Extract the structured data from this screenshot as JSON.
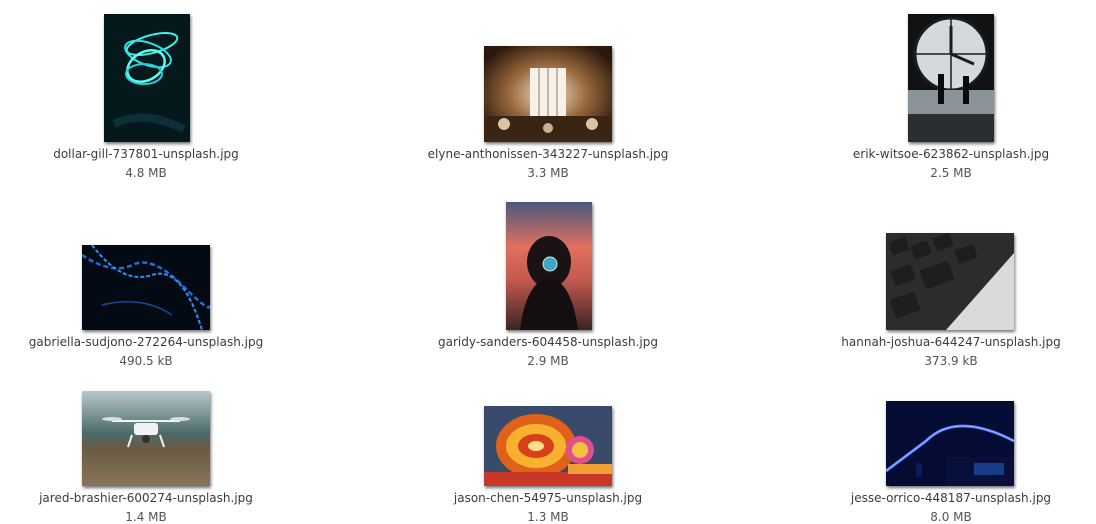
{
  "files": [
    {
      "name": "dollar-gill-737801-unsplash.jpg",
      "size": "4.8 MB",
      "thumbnail": "neon-light-trail-icon"
    },
    {
      "name": "elyne-anthonissen-343227-unsplash.jpg",
      "size": "3.3 MB",
      "thumbnail": "restaurant-interior-icon"
    },
    {
      "name": "erik-witsoe-623862-unsplash.jpg",
      "size": "2.5 MB",
      "thumbnail": "clock-window-icon"
    },
    {
      "name": "gabriella-sudjono-272264-unsplash.jpg",
      "size": "490.5 kB",
      "thumbnail": "blue-light-streaks-icon"
    },
    {
      "name": "garidy-sanders-604458-unsplash.jpg",
      "size": "2.9 MB",
      "thumbnail": "woman-sunset-icon"
    },
    {
      "name": "hannah-joshua-644247-unsplash.jpg",
      "size": "373.9 kB",
      "thumbnail": "keyboard-icon"
    },
    {
      "name": "jared-brashier-600274-unsplash.jpg",
      "size": "1.4 MB",
      "thumbnail": "drone-icon"
    },
    {
      "name": "jason-chen-54975-unsplash.jpg",
      "size": "1.3 MB",
      "thumbnail": "ferris-wheel-icon"
    },
    {
      "name": "jesse-orrico-448187-unsplash.jpg",
      "size": "8.0 MB",
      "thumbnail": "blue-neon-arc-icon"
    }
  ]
}
